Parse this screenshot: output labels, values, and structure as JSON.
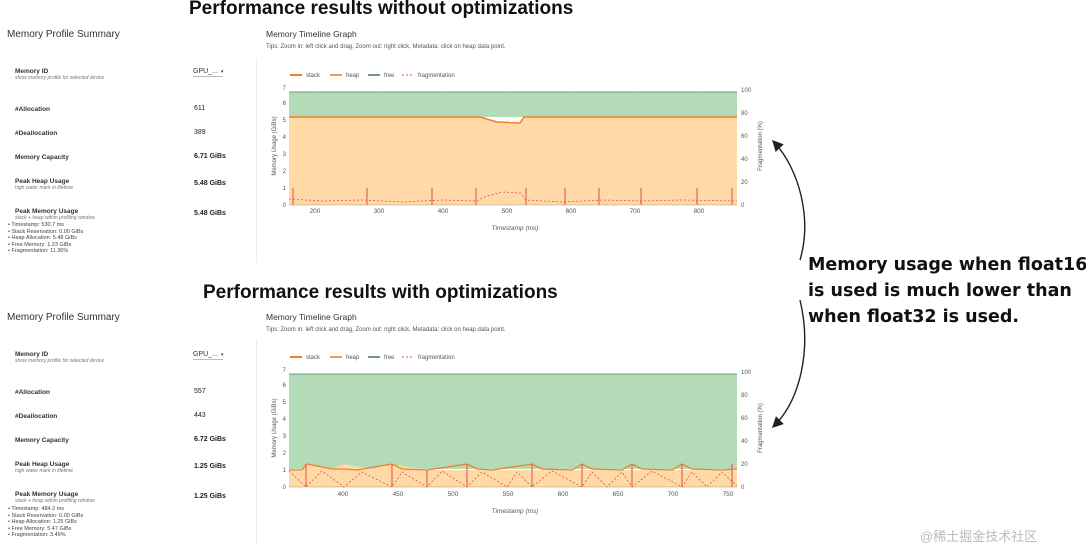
{
  "headlines": {
    "top": "Performance results without optimizations",
    "bottom": "Performance results with optimizations"
  },
  "annotation": [
    "Memory usage when float16",
    "is used is much lower than",
    "when float32 is used."
  ],
  "watermark": "@稀土掘金技术社区",
  "panels": [
    {
      "summary": {
        "title": "Memory Profile Summary",
        "memory_id_label": "Memory ID",
        "memory_id_sub": "show memory profile for selected device",
        "memory_id_value": "GPU_...",
        "allocation_label": "#Allocation",
        "allocation_value": "611",
        "deallocation_label": "#Deallocation",
        "deallocation_value": "389",
        "capacity_label": "Memory Capacity",
        "capacity_value": "6.71 GiBs",
        "peak_heap_label": "Peak Heap Usage",
        "peak_heap_sub": "high water mark in lifetime",
        "peak_heap_value": "5.48 GiBs",
        "peak_mem_label": "Peak Memory Usage",
        "peak_mem_sub": "stack + heap within profiling window",
        "peak_mem_value": "5.48 GiBs",
        "details": [
          "Timestamp: 530.7 ms",
          "Stack Reservation: 0.00 GiBs",
          "Heap Allocation: 5.48 GiBs",
          "Free Memory: 1.23 GiBs",
          "Fragmentation: 11.36%"
        ]
      },
      "graph": {
        "title": "Memory Timeline Graph",
        "tips": "Tips: Zoom in: left click and drag, Zoom out: right click, Metadata: click on heap data point.",
        "legend": [
          "stack",
          "heap",
          "free",
          "fragmentation"
        ],
        "xlabel": "Timestamp (ms)",
        "ylabel": "Memory Usage (GiBs)",
        "y2label": "Fragmentation (%)",
        "yticks": [
          "0",
          "1",
          "2",
          "3",
          "4",
          "5",
          "6",
          "7"
        ],
        "y2ticks": [
          "0",
          "20",
          "40",
          "60",
          "80",
          "100"
        ],
        "xticks": [
          "200",
          "300",
          "400",
          "500",
          "600",
          "700",
          "800"
        ]
      }
    },
    {
      "summary": {
        "title": "Memory Profile Summary",
        "memory_id_label": "Memory ID",
        "memory_id_sub": "show memory profile for selected device",
        "memory_id_value": "GPU_...",
        "allocation_label": "#Allocation",
        "allocation_value": "557",
        "deallocation_label": "#Deallocation",
        "deallocation_value": "443",
        "capacity_label": "Memory Capacity",
        "capacity_value": "6.72 GiBs",
        "peak_heap_label": "Peak Heap Usage",
        "peak_heap_sub": "high water mark in lifetime",
        "peak_heap_value": "1.25 GiBs",
        "peak_mem_label": "Peak Memory Usage",
        "peak_mem_sub": "stack + heap within profiling window",
        "peak_mem_value": "1.25 GiBs",
        "details": [
          "Timestamp: 484.2 ms",
          "Stack Reservation: 0.00 GiBs",
          "Heap Allocation: 1.25 GiBs",
          "Free Memory: 5.47 GiBs",
          "Fragmentation: 3.49%"
        ]
      },
      "graph": {
        "title": "Memory Timeline Graph",
        "tips": "Tips: Zoom in: left click and drag, Zoom out: right click, Metadata: click on heap data point.",
        "legend": [
          "stack",
          "heap",
          "free",
          "fragmentation"
        ],
        "xlabel": "Timestamp (ms)",
        "ylabel": "Memory Usage (GiBs)",
        "y2label": "Fragmentation (%)",
        "yticks": [
          "0",
          "1",
          "2",
          "3",
          "4",
          "5",
          "6",
          "7"
        ],
        "y2ticks": [
          "0",
          "20",
          "40",
          "60",
          "80",
          "100"
        ],
        "xticks": [
          "400",
          "450",
          "500",
          "550",
          "600",
          "650",
          "700",
          "750"
        ]
      }
    }
  ],
  "colors": {
    "heap": "#ffd9a6",
    "heap_line": "#ef7f2f",
    "free": "#b3dbb7",
    "free_line": "#6f9c76",
    "fragmentation": "#d9534f"
  }
}
